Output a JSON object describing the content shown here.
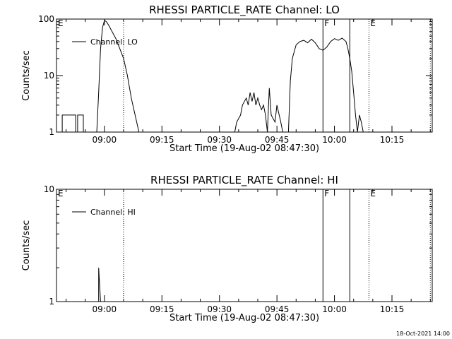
{
  "stamp": "18-Oct-2021 14:00",
  "chart_data": [
    {
      "type": "line",
      "title": "RHESSI PARTICLE_RATE Channel: LO",
      "xlabel": "Start Time (19-Aug-02 08:47:30)",
      "ylabel": "Counts/sec",
      "yscale": "log",
      "xlim": [
        "08:47:30",
        "10:25:30"
      ],
      "ylim": [
        1,
        100
      ],
      "xticks": [
        "09:00",
        "09:15",
        "09:30",
        "09:45",
        "10:00",
        "10:15"
      ],
      "yticks": [
        {
          "value": 1,
          "label": "1"
        },
        {
          "value": 10,
          "label": "10"
        },
        {
          "value": 100,
          "label": "100"
        }
      ],
      "legend": {
        "position": "top-left",
        "entries": [
          "Channel: LO"
        ]
      },
      "markers": [
        {
          "label": "E",
          "time": "08:47:30",
          "style": "dotted"
        },
        {
          "label": "",
          "time": "09:05",
          "style": "dotted"
        },
        {
          "label": "F",
          "time": "09:57",
          "style": "solid"
        },
        {
          "label": "",
          "time": "10:04",
          "style": "solid"
        },
        {
          "label": "E",
          "time": "10:09",
          "style": "dotted"
        },
        {
          "label": "",
          "time": "10:25",
          "style": "dotted"
        }
      ],
      "series": [
        {
          "name": "Channel: LO",
          "points": [
            [
              "08:49:00",
              1
            ],
            [
              "08:49:00",
              2
            ],
            [
              "08:52:30",
              2
            ],
            [
              "08:52:30",
              1
            ],
            [
              "08:53:00",
              1
            ],
            [
              "08:53:00",
              2
            ],
            [
              "08:54:30",
              2
            ],
            [
              "08:54:30",
              1
            ],
            [
              "08:58:00",
              1
            ],
            [
              "08:58:30",
              5
            ],
            [
              "08:59:00",
              30
            ],
            [
              "08:59:30",
              70
            ],
            [
              "09:00:00",
              95
            ],
            [
              "09:00:30",
              90
            ],
            [
              "09:01:00",
              80
            ],
            [
              "09:02:00",
              60
            ],
            [
              "09:03:00",
              45
            ],
            [
              "09:04:00",
              30
            ],
            [
              "09:05:00",
              20
            ],
            [
              "09:06:00",
              10
            ],
            [
              "09:07:00",
              4
            ],
            [
              "09:08:00",
              2
            ],
            [
              "09:09:00",
              1
            ],
            [
              "09:34:00",
              1
            ],
            [
              "09:34:30",
              1.5
            ],
            [
              "09:35:30",
              2
            ],
            [
              "09:36:00",
              3
            ],
            [
              "09:37:00",
              4
            ],
            [
              "09:37:30",
              3
            ],
            [
              "09:38:00",
              5
            ],
            [
              "09:38:30",
              3.5
            ],
            [
              "09:39:00",
              5
            ],
            [
              "09:39:30",
              3
            ],
            [
              "09:40:00",
              4
            ],
            [
              "09:40:30",
              3
            ],
            [
              "09:41:00",
              2.5
            ],
            [
              "09:41:30",
              3
            ],
            [
              "09:42:00",
              2
            ],
            [
              "09:42:30",
              1
            ],
            [
              "09:43:00",
              6
            ],
            [
              "09:43:30",
              2
            ],
            [
              "09:44:30",
              1.5
            ],
            [
              "09:45:00",
              3
            ],
            [
              "09:46:00",
              1.5
            ],
            [
              "09:46:30",
              1
            ],
            [
              "09:48:00",
              1
            ],
            [
              "09:48:30",
              8
            ],
            [
              "09:49:00",
              20
            ],
            [
              "09:50:00",
              35
            ],
            [
              "09:51:00",
              40
            ],
            [
              "09:52:00",
              42
            ],
            [
              "09:53:00",
              38
            ],
            [
              "09:54:00",
              44
            ],
            [
              "09:55:00",
              38
            ],
            [
              "09:56:00",
              30
            ],
            [
              "09:57:00",
              28
            ],
            [
              "09:58:00",
              32
            ],
            [
              "09:59:00",
              40
            ],
            [
              "10:00:00",
              45
            ],
            [
              "10:01:00",
              42
            ],
            [
              "10:02:00",
              46
            ],
            [
              "10:03:00",
              40
            ],
            [
              "10:03:30",
              30
            ],
            [
              "10:04:00",
              20
            ],
            [
              "10:04:30",
              12
            ],
            [
              "10:05:00",
              5
            ],
            [
              "10:05:30",
              2
            ],
            [
              "10:06:00",
              1
            ],
            [
              "10:06:30",
              2
            ],
            [
              "10:07:00",
              1.5
            ],
            [
              "10:07:30",
              1
            ]
          ]
        }
      ]
    },
    {
      "type": "line",
      "title": "RHESSI PARTICLE_RATE Channel: HI",
      "xlabel": "Start Time (19-Aug-02 08:47:30)",
      "ylabel": "Counts/sec",
      "yscale": "log",
      "xlim": [
        "08:47:30",
        "10:25:30"
      ],
      "ylim": [
        1,
        10
      ],
      "xticks": [
        "09:00",
        "09:15",
        "09:30",
        "09:45",
        "10:00",
        "10:15"
      ],
      "yticks": [
        {
          "value": 1,
          "label": "1"
        },
        {
          "value": 10,
          "label": "10"
        }
      ],
      "legend": {
        "position": "top-left",
        "entries": [
          "Channel: HI"
        ]
      },
      "markers": [
        {
          "label": "E",
          "time": "08:47:30",
          "style": "dotted"
        },
        {
          "label": "",
          "time": "09:05",
          "style": "dotted"
        },
        {
          "label": "F",
          "time": "09:57",
          "style": "solid"
        },
        {
          "label": "",
          "time": "10:04",
          "style": "solid"
        },
        {
          "label": "E",
          "time": "10:09",
          "style": "dotted"
        },
        {
          "label": "",
          "time": "10:25",
          "style": "dotted"
        }
      ],
      "series": [
        {
          "name": "Channel: HI",
          "points": [
            [
              "08:58:30",
              1
            ],
            [
              "08:58:30",
              2
            ],
            [
              "08:59:00",
              1
            ]
          ]
        }
      ]
    }
  ]
}
